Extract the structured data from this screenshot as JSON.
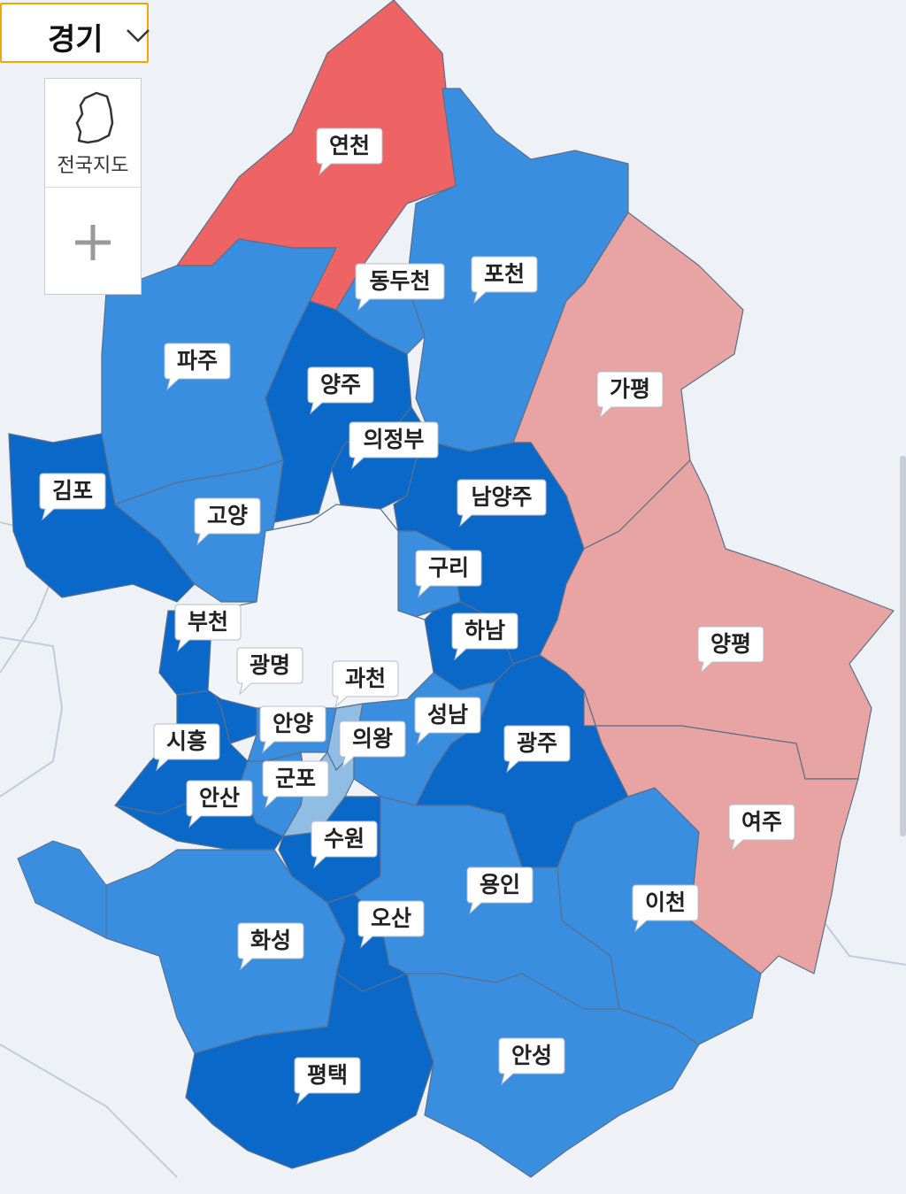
{
  "dropdown": {
    "label": "경기"
  },
  "controls": {
    "national_map": "전국지도"
  },
  "regions": [
    {
      "label": "연천",
      "color": "#ee6363"
    },
    {
      "label": "포천",
      "color": "#3a8ee0"
    },
    {
      "label": "동두천",
      "color": "#3a8ee0"
    },
    {
      "label": "가평",
      "color": "#e8a3a3"
    },
    {
      "label": "파주",
      "color": "#3a8ee0"
    },
    {
      "label": "양주",
      "color": "#0a68c9"
    },
    {
      "label": "의정부",
      "color": "#0a68c9"
    },
    {
      "label": "김포",
      "color": "#0a68c9"
    },
    {
      "label": "고양",
      "color": "#3a8ee0"
    },
    {
      "label": "남양주",
      "color": "#0a68c9"
    },
    {
      "label": "구리",
      "color": "#3a8ee0"
    },
    {
      "label": "양평",
      "color": "#e8a3a3"
    },
    {
      "label": "하남",
      "color": "#0a68c9"
    },
    {
      "label": "부천",
      "color": "#0a68c9"
    },
    {
      "label": "광명",
      "color": "#0a68c9"
    },
    {
      "label": "시흥",
      "color": "#0a68c9"
    },
    {
      "label": "과천",
      "color": "#8fbde3"
    },
    {
      "label": "안양",
      "color": "#3a8ee0"
    },
    {
      "label": "의왕",
      "color": "#8fbde3"
    },
    {
      "label": "군포",
      "color": "#3a8ee0"
    },
    {
      "label": "성남",
      "color": "#3a8ee0"
    },
    {
      "label": "광주",
      "color": "#0a68c9"
    },
    {
      "label": "안산",
      "color": "#0a68c9"
    },
    {
      "label": "수원",
      "color": "#0a68c9"
    },
    {
      "label": "용인",
      "color": "#3a8ee0"
    },
    {
      "label": "이천",
      "color": "#3a8ee0"
    },
    {
      "label": "여주",
      "color": "#e8a3a3"
    },
    {
      "label": "화성",
      "color": "#3a8ee0"
    },
    {
      "label": "오산",
      "color": "#0a68c9"
    },
    {
      "label": "평택",
      "color": "#0a68c9"
    },
    {
      "label": "안성",
      "color": "#3a8ee0"
    }
  ]
}
